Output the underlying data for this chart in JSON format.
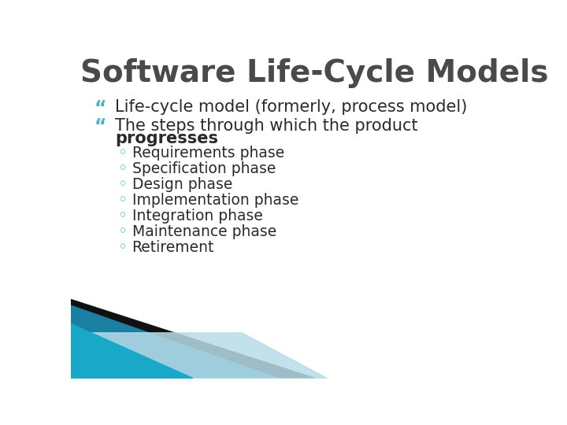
{
  "title": "Software Life-Cycle Models",
  "title_color": "#4a4a4a",
  "title_fontsize": 28,
  "bg_color": "#ffffff",
  "bullet1": "Life-cycle model (formerly, process model)",
  "bullet2_line1": "The steps through which the product",
  "bullet2_line2": "progresses",
  "bullet_color": "#4db3c8",
  "bullet_text_color": "#2a2a2a",
  "bullet_fontsize": 15,
  "sub_items": [
    "Requirements phase",
    "Specification phase",
    "Design phase",
    "Implementation phase",
    "Integration phase",
    "Maintenance phase",
    "Retirement"
  ],
  "sub_color": "#4db3c8",
  "sub_text_color": "#2a2a2a",
  "sub_fontsize": 13.5,
  "footer_teal": "#1a7fa0",
  "footer_teal2": "#1aa8c8",
  "footer_dark": "#111111",
  "footer_light": "#b8dce8"
}
